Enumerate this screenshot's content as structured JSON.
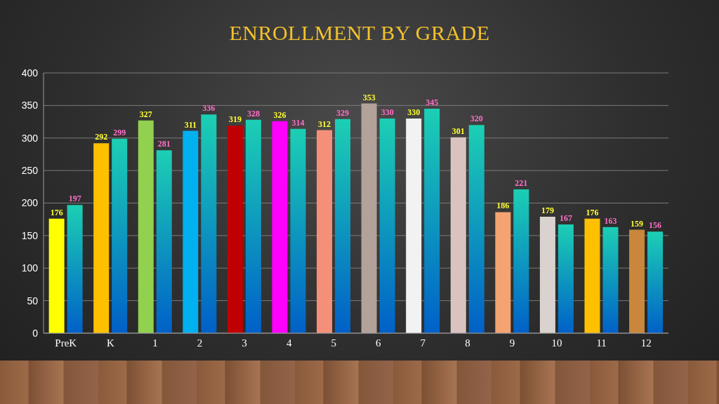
{
  "chart_data": {
    "type": "bar",
    "title": "ENROLLMENT BY GRADE",
    "categories": [
      "PreK",
      "K",
      "1",
      "2",
      "3",
      "4",
      "5",
      "6",
      "7",
      "8",
      "9",
      "10",
      "11",
      "12"
    ],
    "series": [
      {
        "colors": [
          "#ffff00",
          "#ffc000",
          "#92d050",
          "#00b0f0",
          "#c00000",
          "#ff00ff",
          "#f4907a",
          "#b3a29a",
          "#f2f2f2",
          "#d9c3c0",
          "#f4a470",
          "#d9d2cf",
          "#ffc000",
          "#c8873a"
        ],
        "values": [
          176,
          292,
          327,
          311,
          319,
          326,
          312,
          353,
          330,
          301,
          186,
          179,
          176,
          159
        ]
      },
      {
        "color": "#1ccfb4",
        "values": [
          197,
          299,
          281,
          336,
          328,
          314,
          329,
          330,
          345,
          320,
          221,
          167,
          163,
          156
        ]
      }
    ],
    "ylim": [
      0,
      400
    ],
    "yticks": [
      0,
      50,
      100,
      150,
      200,
      250,
      300,
      350,
      400
    ],
    "grid": true,
    "data_labels": true
  }
}
